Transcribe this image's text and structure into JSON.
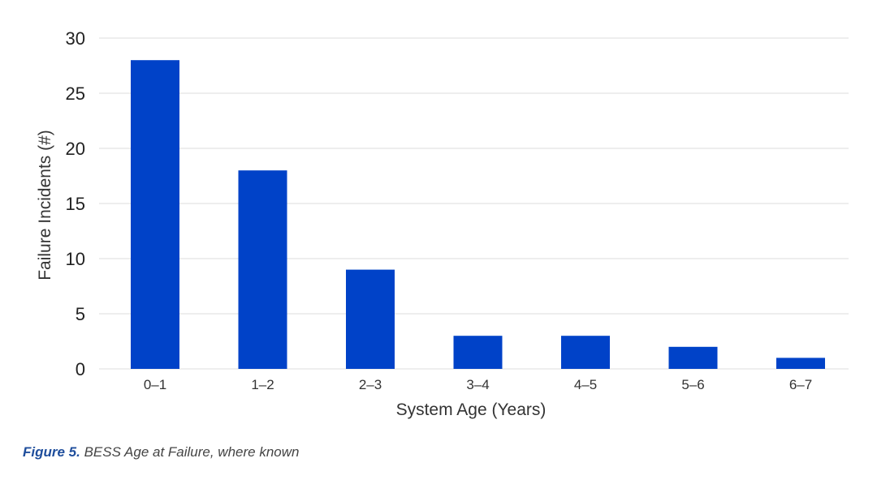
{
  "chart_data": {
    "type": "bar",
    "categories": [
      "0–1",
      "1–2",
      "2–3",
      "3–4",
      "4–5",
      "5–6",
      "6–7"
    ],
    "values": [
      28,
      18,
      9,
      3,
      3,
      2,
      1
    ],
    "xlabel": "System Age (Years)",
    "ylabel": "Failure Incidents (#)",
    "ylim": [
      0,
      30
    ],
    "yticks": [
      0,
      5,
      10,
      15,
      20,
      25,
      30
    ],
    "grid": true,
    "bar_color": "#0042c8",
    "grid_color": "#dddddd"
  },
  "caption": {
    "label": "Figure 5.",
    "text": " BESS Age at Failure, where known"
  }
}
